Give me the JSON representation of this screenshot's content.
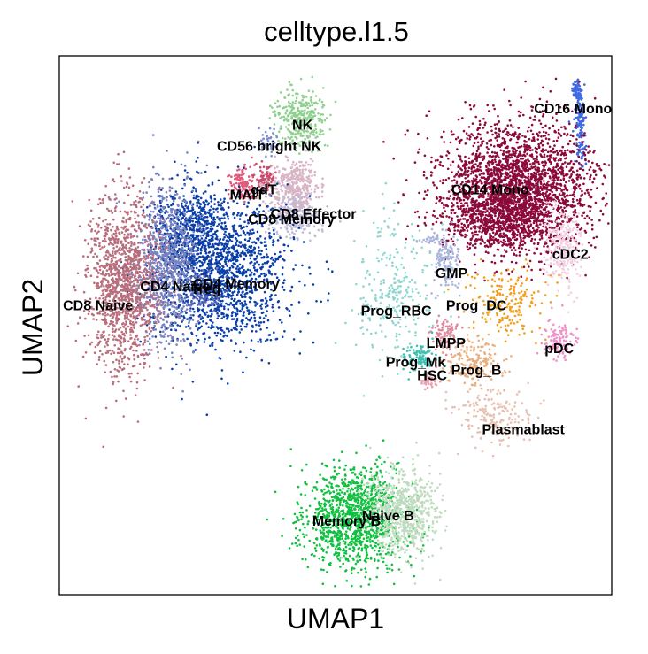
{
  "chart_data": {
    "type": "scatter",
    "title": "celltype.l1.5",
    "xlabel": "UMAP1",
    "ylabel": "UMAP2",
    "xlim": [
      0,
      100
    ],
    "ylim": [
      0,
      100
    ],
    "grid": false,
    "legend": "on-data labels",
    "clusters": [
      {
        "name": "CD16 Mono",
        "color": "#4169e1",
        "label_xy": [
          93,
          90
        ]
      },
      {
        "name": "NK",
        "color": "#8fd18f",
        "label_xy": [
          44,
          87
        ]
      },
      {
        "name": "CD56 bright NK",
        "color": "#7b8fd0",
        "label_xy": [
          38,
          83
        ]
      },
      {
        "name": "MAIT",
        "color": "#e0587a",
        "label_xy": [
          34,
          74
        ]
      },
      {
        "name": "gdT",
        "color": "#c94a6b",
        "label_xy": [
          37,
          75
        ]
      },
      {
        "name": "CD8 Effector",
        "color": "#d8b4c4",
        "label_xy": [
          46,
          70.5
        ]
      },
      {
        "name": "CD8 Memory",
        "color": "#c0bcd8",
        "label_xy": [
          42,
          69.5
        ]
      },
      {
        "name": "CD14 Mono",
        "color": "#8b0a3a",
        "label_xy": [
          78,
          75
        ]
      },
      {
        "name": "cDC2",
        "color": "#f2d0e2",
        "label_xy": [
          92.5,
          63
        ]
      },
      {
        "name": "GMP",
        "color": "#a9b4dc",
        "label_xy": [
          71,
          59.5
        ]
      },
      {
        "name": "CD4 Memory",
        "color": "#0a3ea8",
        "label_xy": [
          32,
          57.5
        ]
      },
      {
        "name": "CD4 Naive",
        "color": "#7883c0",
        "label_xy": [
          21,
          57
        ]
      },
      {
        "name": "Treg",
        "color": "#5566b8",
        "label_xy": [
          26.5,
          56.5
        ]
      },
      {
        "name": "CD8 Naive",
        "color": "#b86e7c",
        "label_xy": [
          7,
          53.5
        ]
      },
      {
        "name": "Prog_DC",
        "color": "#f0a020",
        "label_xy": [
          75.5,
          53.5
        ]
      },
      {
        "name": "Prog_RBC",
        "color": "#8ed6d0",
        "label_xy": [
          61,
          52.5
        ]
      },
      {
        "name": "LMPP",
        "color": "#e08aa0",
        "label_xy": [
          70,
          46.5
        ]
      },
      {
        "name": "pDC",
        "color": "#f090c8",
        "label_xy": [
          90.5,
          45.5
        ]
      },
      {
        "name": "Prog_Mk",
        "color": "#40c0b0",
        "label_xy": [
          64.5,
          43
        ]
      },
      {
        "name": "Prog_B",
        "color": "#e8b080",
        "label_xy": [
          75.5,
          41.5
        ]
      },
      {
        "name": "HSC",
        "color": "#e8a0b0",
        "label_xy": [
          67.5,
          40.5
        ]
      },
      {
        "name": "Plasmablast",
        "color": "#e8c0b0",
        "label_xy": [
          84,
          30.5
        ]
      },
      {
        "name": "Memory B",
        "color": "#10c040",
        "label_xy": [
          52,
          13.5
        ]
      },
      {
        "name": "Naive B",
        "color": "#c0dcc0",
        "label_xy": [
          59.5,
          14.5
        ]
      }
    ]
  }
}
